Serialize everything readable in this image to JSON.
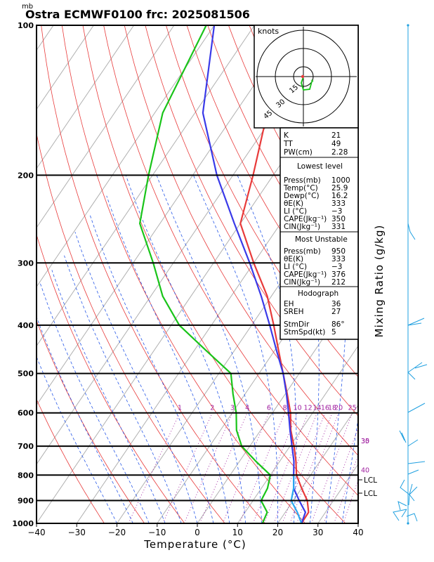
{
  "header": {
    "unit_label": "mb",
    "title": "Ostra ECMWF0100 frc: 2025081506"
  },
  "chart_data": {
    "type": "skew-t",
    "xlabel": "Temperature (°C)",
    "right_label": "Mixing Ratio (g/kg)",
    "x_ticks": [
      -40,
      -30,
      -20,
      -10,
      0,
      10,
      20,
      30,
      40
    ],
    "pressure_ticks": [
      100,
      200,
      300,
      400,
      500,
      600,
      700,
      800,
      900,
      1000
    ],
    "xlim": [
      -40,
      40
    ],
    "plim": [
      1000,
      100
    ],
    "mixing_ratio_labels": [
      "1",
      "2",
      "3",
      "4",
      "6",
      "8",
      "10",
      "12",
      "14",
      "16",
      "18",
      "20",
      "25",
      "30",
      "35",
      "40"
    ],
    "lcl_label": "LCL",
    "series": [
      {
        "color": "#e83a3a",
        "points": [
          [
            1000,
            25.9
          ],
          [
            950,
            25.8
          ],
          [
            900,
            23.5
          ],
          [
            850,
            20
          ],
          [
            800,
            16.5
          ],
          [
            750,
            14
          ],
          [
            700,
            11
          ],
          [
            650,
            7.5
          ],
          [
            600,
            4.5
          ],
          [
            550,
            0.5
          ],
          [
            500,
            -4
          ],
          [
            450,
            -9
          ],
          [
            400,
            -14.5
          ],
          [
            350,
            -21
          ],
          [
            300,
            -30
          ],
          [
            250,
            -40
          ],
          [
            200,
            -45
          ],
          [
            150,
            -52
          ],
          [
            100,
            -58
          ]
        ]
      },
      {
        "color": "#19c419",
        "points": [
          [
            1000,
            16.2
          ],
          [
            950,
            15.5
          ],
          [
            900,
            12
          ],
          [
            850,
            11.5
          ],
          [
            800,
            10
          ],
          [
            750,
            4
          ],
          [
            700,
            -2
          ],
          [
            650,
            -6
          ],
          [
            600,
            -9
          ],
          [
            550,
            -13
          ],
          [
            500,
            -17
          ],
          [
            450,
            -27
          ],
          [
            400,
            -38
          ],
          [
            350,
            -47
          ],
          [
            300,
            -55
          ],
          [
            250,
            -65
          ],
          [
            200,
            -71
          ],
          [
            150,
            -78
          ],
          [
            100,
            -82
          ]
        ]
      },
      {
        "color": "#3a3ae8",
        "points": [
          [
            1000,
            25.9
          ],
          [
            950,
            25
          ],
          [
            900,
            21.5
          ],
          [
            850,
            18
          ],
          [
            800,
            15.8
          ],
          [
            750,
            13.5
          ],
          [
            700,
            10.5
          ],
          [
            650,
            7.3
          ],
          [
            600,
            4
          ],
          [
            550,
            0.3
          ],
          [
            500,
            -4
          ],
          [
            450,
            -9.5
          ],
          [
            400,
            -15.5
          ],
          [
            350,
            -22.5
          ],
          [
            300,
            -31
          ],
          [
            250,
            -41.5
          ],
          [
            200,
            -54
          ],
          [
            150,
            -68
          ],
          [
            100,
            -80
          ]
        ]
      },
      {
        "color": "#2aa8f0",
        "points": [
          [
            1000,
            25.9
          ],
          [
            950,
            23
          ],
          [
            900,
            19.5
          ],
          [
            850,
            18
          ],
          [
            800,
            15.8
          ]
        ]
      }
    ]
  },
  "hodograph": {
    "units": "knots",
    "ring_labels": [
      "15",
      "30",
      "45"
    ]
  },
  "indices": {
    "K": {
      "label": "K",
      "value": "21"
    },
    "TT": {
      "label": "TT",
      "value": "49"
    },
    "PW": {
      "label": "PW(cm)",
      "value": "2.28"
    },
    "lowest_title": "Lowest level",
    "lowest": [
      {
        "label": "Press(mb)",
        "value": "1000"
      },
      {
        "label": "Temp(°C)",
        "value": "25.9"
      },
      {
        "label": "Dewp(°C)",
        "value": "16.2"
      },
      {
        "label": "θE(K)",
        "value": "333"
      },
      {
        "label": "LI (°C)",
        "value": "−3"
      },
      {
        "label": "CAPE(Jkg⁻¹)",
        "value": "350"
      },
      {
        "label": "CIN(Jkg⁻¹)",
        "value": "331"
      }
    ],
    "mu_title": "Most Unstable",
    "mu": [
      {
        "label": "Press(mb)",
        "value": "950"
      },
      {
        "label": "θE(K)",
        "value": "333"
      },
      {
        "label": "LI (°C)",
        "value": "−3"
      },
      {
        "label": "CAPE(Jkg⁻¹)",
        "value": "376"
      },
      {
        "label": "CIN(Jkg⁻¹)",
        "value": "212"
      }
    ],
    "hodo_title": "Hodograph",
    "hodo": [
      {
        "label": "EH",
        "value": "36"
      },
      {
        "label": "SREH",
        "value": "27"
      },
      {
        "label": "StmDir",
        "value": "86°"
      },
      {
        "label": "StmSpd(kt)",
        "value": "5"
      }
    ]
  },
  "colors": {
    "temperature": "#e83a3a",
    "dewpoint": "#19c419",
    "parcel": "#3a3ae8",
    "mixing_ratio": "#a020a0",
    "wind": "#1fa0e0",
    "isotherm": "#b0b0b0"
  }
}
